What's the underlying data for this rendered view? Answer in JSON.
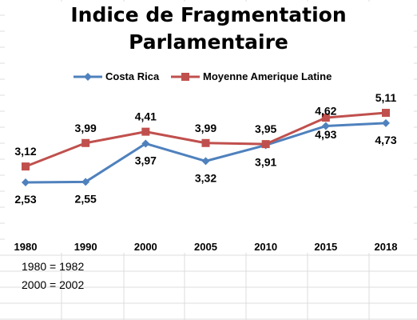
{
  "chart_data": {
    "type": "line",
    "title": [
      "Indice de Fragmentation",
      "Parlamentaire"
    ],
    "categories": [
      "1980",
      "1990",
      "2000",
      "2005",
      "2010",
      "2015",
      "2018"
    ],
    "ylim": [
      2.0,
      5.5
    ],
    "grid": true,
    "legend_position": "top",
    "series": [
      {
        "name": "Costa Rica",
        "color": "#4F81BD",
        "marker": "diamond",
        "values": [
          2.53,
          2.55,
          3.97,
          3.32,
          3.91,
          4.62,
          4.73
        ],
        "labels": [
          "2,53",
          "2,55",
          "3,97",
          "3,32",
          "3,91",
          "4,62",
          "4,73"
        ]
      },
      {
        "name": "Moyenne Amerique Latine",
        "color": "#C0504D",
        "marker": "square",
        "values": [
          3.12,
          3.99,
          4.41,
          3.99,
          3.95,
          4.93,
          5.11
        ],
        "labels": [
          "3,12",
          "3,99",
          "4,41",
          "3,99",
          "3,95",
          "4,93",
          "5,11"
        ]
      }
    ]
  },
  "notes": [
    "1980 = 1982",
    "2000 = 2002"
  ]
}
